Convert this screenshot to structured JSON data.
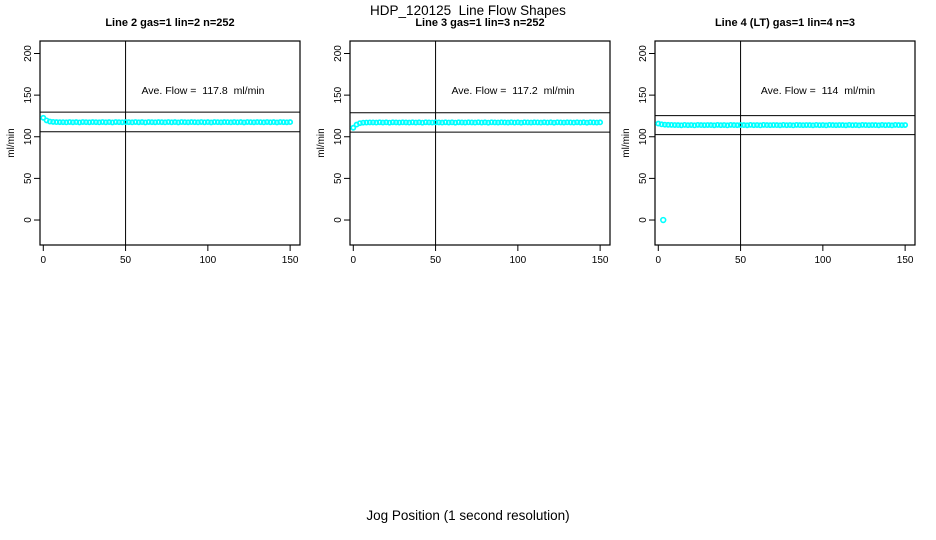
{
  "header": {
    "title": "HDP_120125  Line Flow Shapes"
  },
  "footer": {
    "xlabel": "Jog Position (1 second resolution)"
  },
  "colors": {
    "points": "#00ffff",
    "axis": "#000000",
    "background": "#ffffff"
  },
  "chart_data": [
    {
      "type": "scatter",
      "title": "Line 2 gas=1 lin=2 n=252",
      "annotation": "Ave. Flow =  117.8  ml/min",
      "ave_flow_ml_min": 117.8,
      "n": 252,
      "ylabel": "ml/min",
      "x_ticks": [
        0,
        50,
        100,
        150
      ],
      "y_ticks": [
        0,
        50,
        100,
        150,
        200
      ],
      "xlim": [
        -2,
        156
      ],
      "ylim": [
        -30,
        215
      ],
      "ref_lines_h": [
        129.6,
        106.0
      ],
      "ref_line_v": 50,
      "grid": false,
      "series": {
        "x_start": 0,
        "x_step": 2,
        "y": [
          122.8,
          119.6,
          118.3,
          117.8,
          117.6,
          117.5,
          117.5,
          117.3,
          117.7,
          117.4,
          117.6,
          117.2,
          117.7,
          117.5,
          117.4,
          117.6,
          117.5,
          117.3,
          117.7,
          117.4,
          117.6,
          117.2,
          117.7,
          117.5,
          117.4,
          117.6,
          117.5,
          117.3,
          117.7,
          117.4,
          117.6,
          117.2,
          117.7,
          117.5,
          117.4,
          117.6,
          117.5,
          117.3,
          117.7,
          117.4,
          117.6,
          117.2,
          117.7,
          117.5,
          117.4,
          117.6,
          117.5,
          117.3,
          117.7,
          117.4,
          117.6,
          117.2,
          117.7,
          117.5,
          117.4,
          117.6,
          117.5,
          117.3,
          117.7,
          117.4,
          117.6,
          117.2,
          117.7,
          117.5,
          117.4,
          117.6,
          117.5,
          117.3,
          117.7,
          117.4,
          117.6,
          117.2,
          117.7,
          117.5,
          117.4,
          117.6
        ]
      },
      "extra_points": []
    },
    {
      "type": "scatter",
      "title": "Line 3 gas=1 lin=3 n=252",
      "annotation": "Ave. Flow =  117.2  ml/min",
      "ave_flow_ml_min": 117.2,
      "n": 252,
      "ylabel": "ml/min",
      "x_ticks": [
        0,
        50,
        100,
        150
      ],
      "y_ticks": [
        0,
        50,
        100,
        150,
        200
      ],
      "xlim": [
        -2,
        156
      ],
      "ylim": [
        -30,
        215
      ],
      "ref_lines_h": [
        128.9,
        105.5
      ],
      "ref_line_v": 50,
      "grid": false,
      "series": {
        "x_start": 0,
        "x_step": 2,
        "y": [
          110.8,
          114.6,
          116.3,
          116.9,
          117.1,
          117.2,
          117.2,
          117.0,
          117.4,
          117.1,
          117.3,
          116.9,
          117.4,
          117.2,
          117.1,
          117.3,
          117.2,
          117.0,
          117.4,
          117.1,
          117.3,
          116.9,
          117.4,
          117.2,
          117.1,
          117.3,
          117.2,
          117.0,
          117.4,
          117.1,
          117.3,
          116.9,
          117.4,
          117.2,
          117.1,
          117.3,
          117.2,
          117.0,
          117.4,
          117.1,
          117.3,
          116.9,
          117.4,
          117.2,
          117.1,
          117.3,
          117.2,
          117.0,
          117.4,
          117.1,
          117.3,
          116.9,
          117.4,
          117.2,
          117.1,
          117.3,
          117.2,
          117.0,
          117.4,
          117.1,
          117.3,
          116.9,
          117.4,
          117.2,
          117.1,
          117.3,
          117.2,
          117.0,
          117.4,
          117.1,
          117.3,
          116.9,
          117.4,
          117.2,
          117.1,
          117.3
        ]
      },
      "extra_points": []
    },
    {
      "type": "scatter",
      "title": "Line 4 (LT) gas=1 lin=4 n=3",
      "annotation": "Ave. Flow =  114  ml/min",
      "ave_flow_ml_min": 114,
      "n": 3,
      "ylabel": "ml/min",
      "x_ticks": [
        0,
        50,
        100,
        150
      ],
      "y_ticks": [
        0,
        50,
        100,
        150,
        200
      ],
      "xlim": [
        -2,
        156
      ],
      "ylim": [
        -30,
        215
      ],
      "ref_lines_h": [
        125.4,
        102.6
      ],
      "ref_line_v": 50,
      "grid": false,
      "series": {
        "x_start": 0,
        "x_step": 2,
        "y": [
          115.8,
          114.9,
          114.5,
          114.3,
          114.2,
          114.1,
          114.0,
          113.8,
          114.2,
          113.9,
          114.1,
          113.7,
          114.2,
          114.0,
          113.9,
          114.1,
          114.0,
          113.8,
          114.2,
          113.9,
          114.1,
          113.7,
          114.2,
          114.0,
          113.9,
          114.1,
          114.0,
          113.8,
          114.2,
          113.9,
          114.1,
          113.7,
          114.2,
          114.0,
          113.9,
          114.1,
          114.0,
          113.8,
          114.2,
          113.9,
          114.1,
          113.7,
          114.2,
          114.0,
          113.9,
          114.1,
          114.0,
          113.8,
          114.2,
          113.9,
          114.1,
          113.7,
          114.2,
          114.0,
          113.9,
          114.1,
          114.0,
          113.8,
          114.2,
          113.9,
          114.1,
          113.7,
          114.2,
          114.0,
          113.9,
          114.1,
          114.0,
          113.8,
          114.2,
          113.9,
          114.1,
          113.7,
          114.2,
          114.0,
          113.9,
          114.1
        ]
      },
      "extra_points": [
        [
          3,
          0
        ]
      ]
    }
  ]
}
